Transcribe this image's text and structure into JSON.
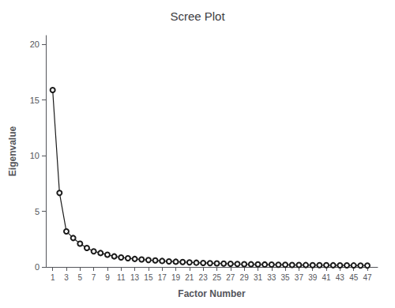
{
  "chart_data": {
    "type": "line",
    "title": "Scree Plot",
    "xlabel": "Factor Number",
    "ylabel": "Eigenvalue",
    "x": [
      1,
      2,
      3,
      4,
      5,
      6,
      7,
      8,
      9,
      10,
      11,
      12,
      13,
      14,
      15,
      16,
      17,
      18,
      19,
      20,
      21,
      22,
      23,
      24,
      25,
      26,
      27,
      28,
      29,
      30,
      31,
      32,
      33,
      34,
      35,
      36,
      37,
      38,
      39,
      40,
      41,
      42,
      43,
      44,
      45,
      46,
      47
    ],
    "values": [
      15.9,
      6.65,
      3.2,
      2.6,
      2.1,
      1.7,
      1.4,
      1.25,
      1.1,
      0.95,
      0.85,
      0.78,
      0.72,
      0.67,
      0.62,
      0.58,
      0.54,
      0.5,
      0.47,
      0.44,
      0.41,
      0.38,
      0.36,
      0.34,
      0.32,
      0.3,
      0.28,
      0.26,
      0.25,
      0.24,
      0.23,
      0.22,
      0.21,
      0.2,
      0.19,
      0.18,
      0.175,
      0.17,
      0.165,
      0.16,
      0.155,
      0.15,
      0.145,
      0.14,
      0.135,
      0.13,
      0.125
    ],
    "color": "#1a1a1a",
    "marker": "circle",
    "xlim": [
      0.0,
      48.5
    ],
    "xticks": [
      1,
      3,
      5,
      7,
      9,
      11,
      13,
      15,
      17,
      19,
      21,
      23,
      25,
      27,
      29,
      31,
      33,
      35,
      37,
      39,
      41,
      43,
      45,
      47
    ],
    "ylim": [
      0,
      20.8
    ],
    "yticks": [
      0,
      5,
      10,
      15,
      20
    ],
    "grid": false
  }
}
